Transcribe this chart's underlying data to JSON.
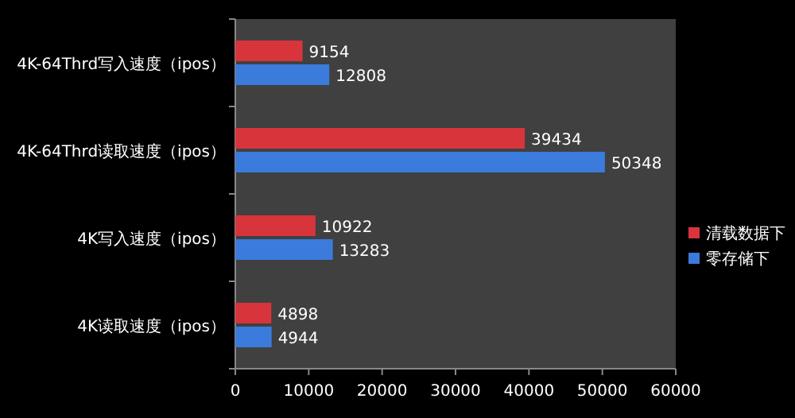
{
  "chart_data": {
    "type": "bar",
    "orientation": "horizontal",
    "categories": [
      "4K-64Thrd写入速度（ipos）",
      "4K-64Thrd读取速度（ipos）",
      "4K写入速度（ipos）",
      "4K读取速度（ipos）"
    ],
    "series": [
      {
        "name": "清载数据下",
        "color": "#d8343c",
        "values": [
          9154,
          39434,
          10922,
          4898
        ]
      },
      {
        "name": "零存储下",
        "color": "#3b7bdb",
        "values": [
          12808,
          50348,
          13283,
          4944
        ]
      }
    ],
    "xlim": [
      0,
      60000
    ],
    "xticks": [
      0,
      10000,
      20000,
      30000,
      40000,
      50000,
      60000
    ],
    "data_labels": true,
    "legend": "right"
  }
}
